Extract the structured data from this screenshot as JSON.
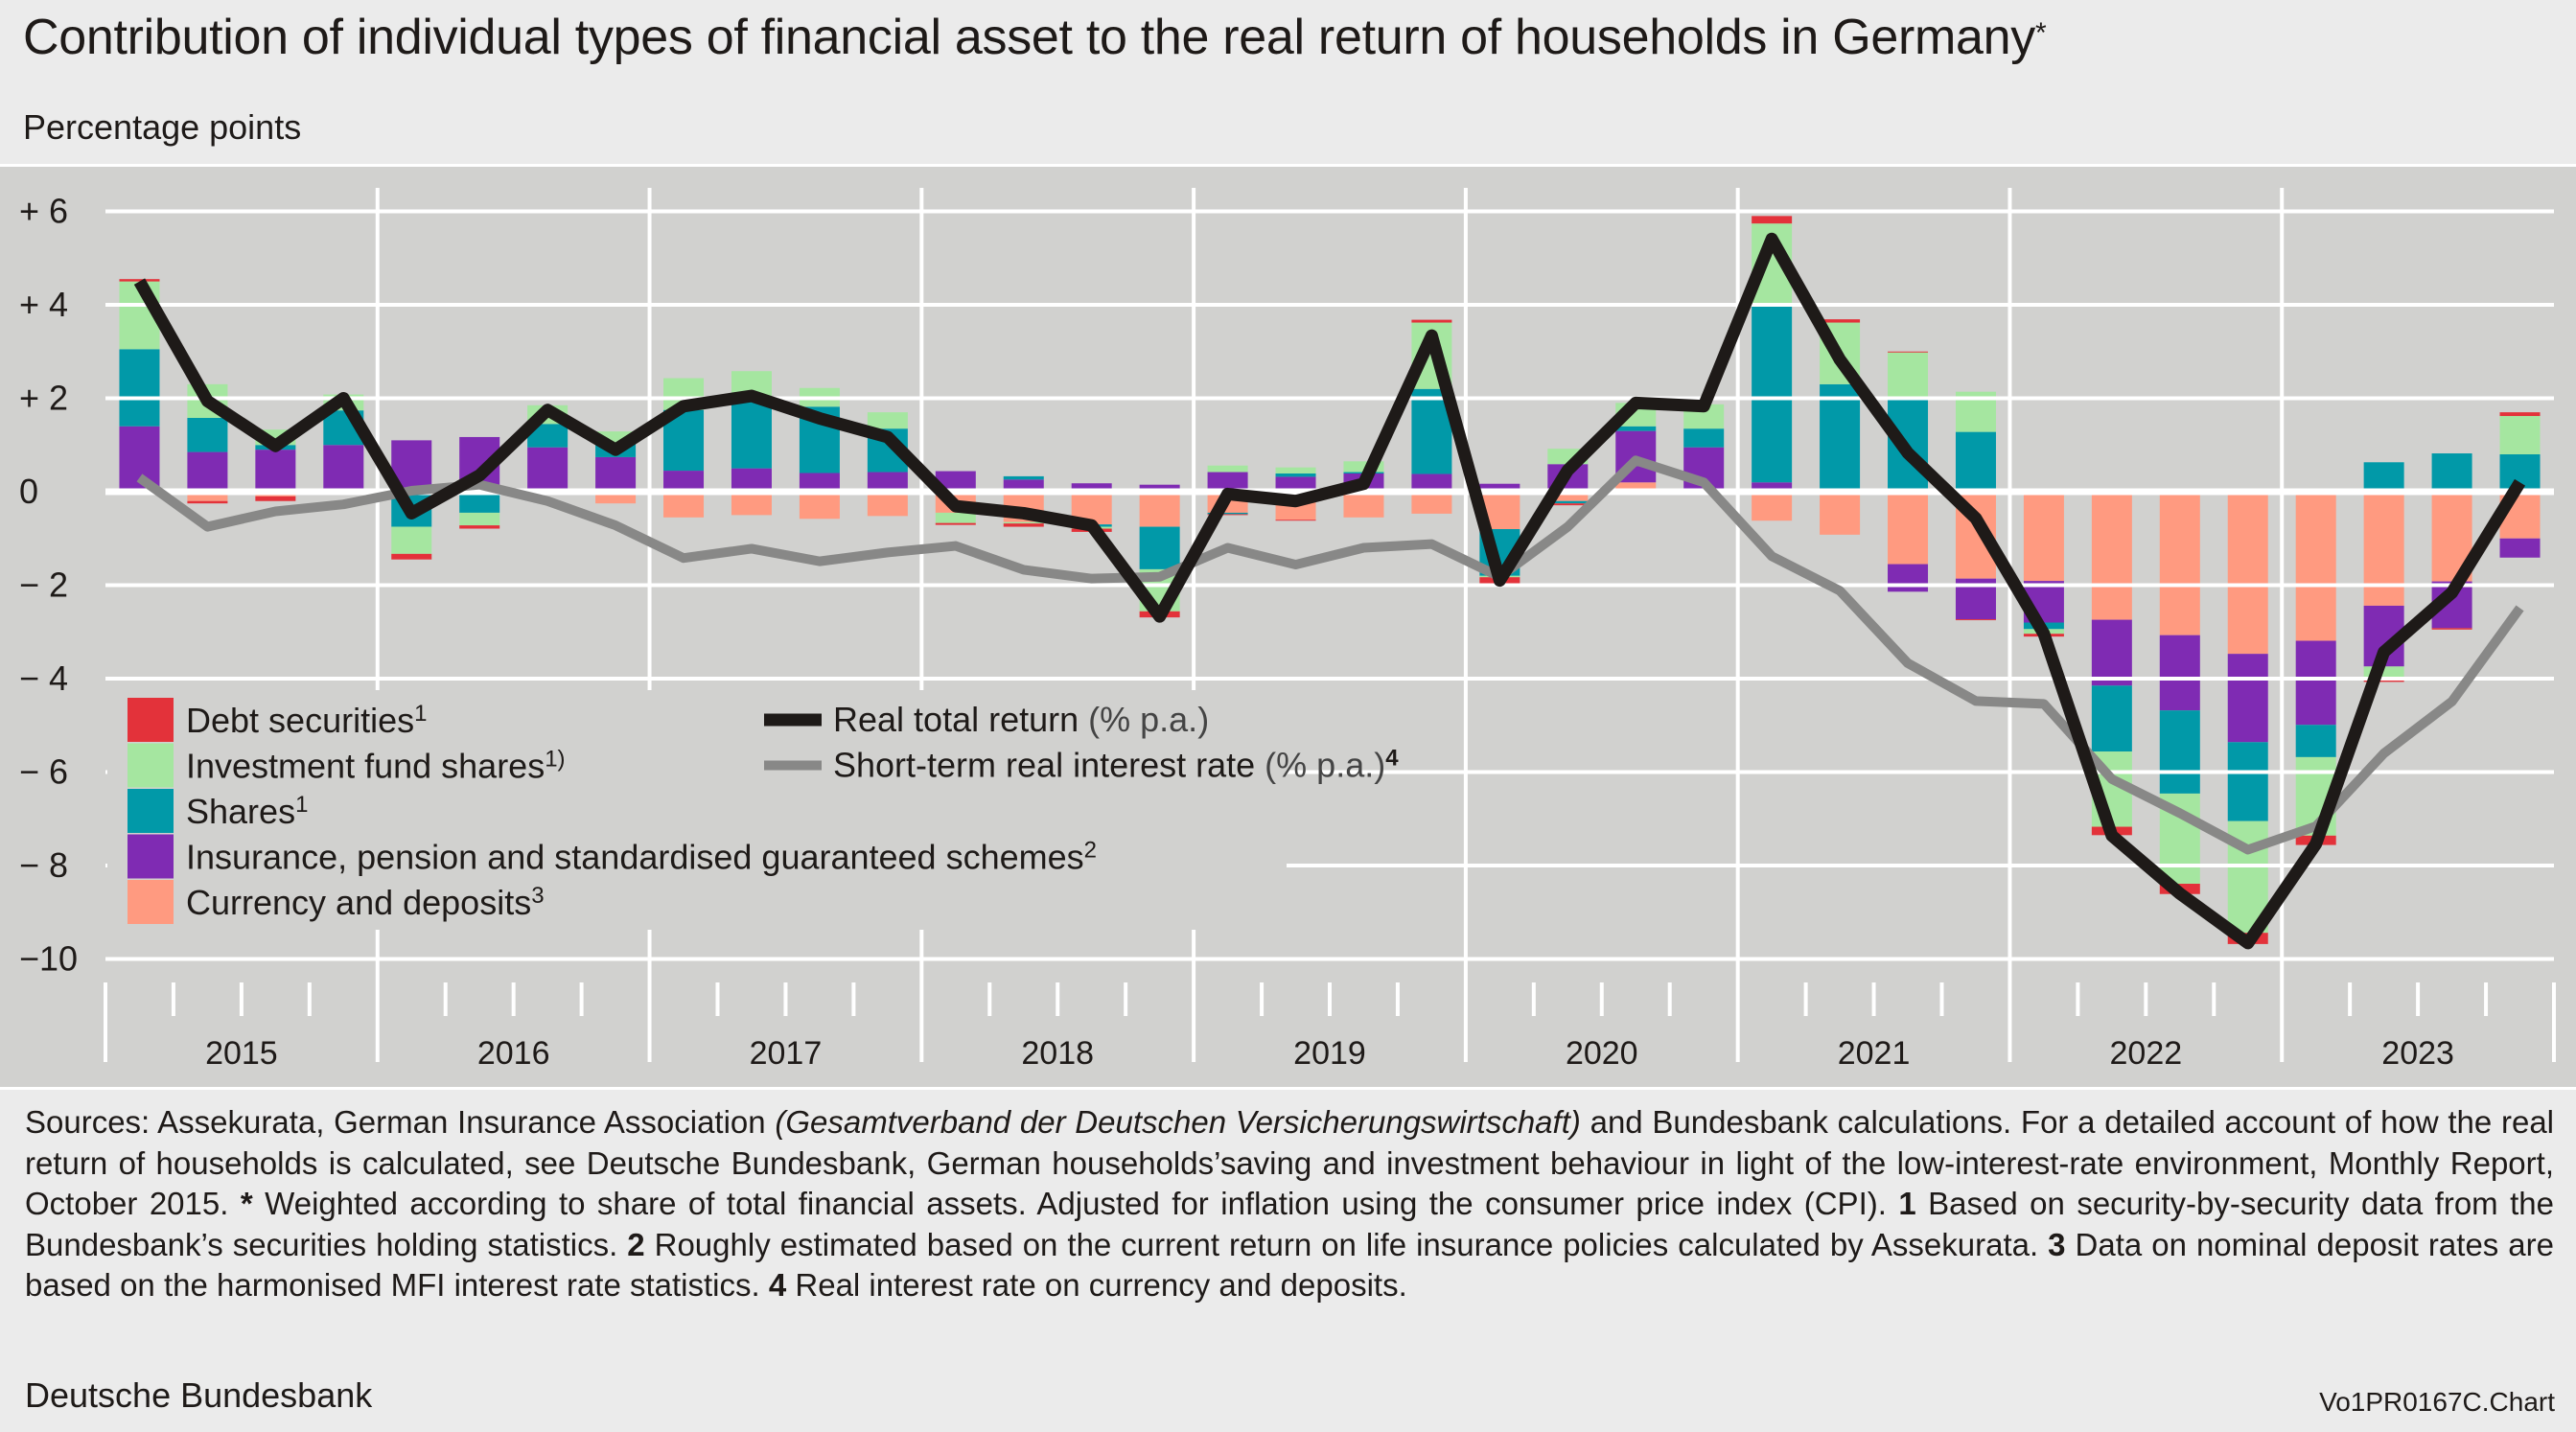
{
  "header": {
    "title": "Contribution of individual types of financial asset to the real return of households in Germany",
    "title_marker": "*",
    "subtitle": "Percentage points"
  },
  "colors": {
    "debt_securities": "#e3323a",
    "investment_fund_shares": "#a5e6a0",
    "shares": "#0199a8",
    "insurance": "#7f2bb3",
    "currency_deposits": "#ff9a80",
    "real_total_return": "#1e1a18",
    "short_term_rate": "#888887",
    "plot_background": "#d1d1cf",
    "grid": "#ffffff"
  },
  "chart_data": {
    "type": "bar",
    "stacked": true,
    "frequency": "quarterly",
    "categories": [
      "2015 Q1",
      "2015 Q2",
      "2015 Q3",
      "2015 Q4",
      "2016 Q1",
      "2016 Q2",
      "2016 Q3",
      "2016 Q4",
      "2017 Q1",
      "2017 Q2",
      "2017 Q3",
      "2017 Q4",
      "2018 Q1",
      "2018 Q2",
      "2018 Q3",
      "2018 Q4",
      "2019 Q1",
      "2019 Q2",
      "2019 Q3",
      "2019 Q4",
      "2020 Q1",
      "2020 Q2",
      "2020 Q3",
      "2020 Q4",
      "2021 Q1",
      "2021 Q2",
      "2021 Q3",
      "2021 Q4",
      "2022 Q1",
      "2022 Q2",
      "2022 Q3",
      "2022 Q4",
      "2023 Q1",
      "2023 Q2",
      "2023 Q3",
      "2023 Q4"
    ],
    "x_tick_labels": [
      "2015",
      "2016",
      "2017",
      "2018",
      "2019",
      "2020",
      "2021",
      "2022",
      "2023"
    ],
    "y_tick_labels": [
      "+ 6",
      "+ 4",
      "+ 2",
      "0",
      "− 2",
      "− 4",
      "− 6",
      "− 8",
      "−10"
    ],
    "y_ticks": [
      6,
      4,
      2,
      0,
      -2,
      -4,
      -6,
      -8,
      -10
    ],
    "ylim": [
      -10,
      6
    ],
    "ylabel": "Percentage points",
    "grid": "horizontal",
    "legend_placement": "bottom-left",
    "series": [
      {
        "key": "currency_deposits",
        "name": "Currency and deposits",
        "sup": "3",
        "type": "bar",
        "values": [
          -0.05,
          -0.2,
          -0.1,
          0,
          0,
          0,
          0,
          -0.25,
          -0.55,
          -0.5,
          -0.58,
          -0.52,
          -0.45,
          -0.65,
          -0.7,
          -0.75,
          -0.45,
          -0.6,
          -0.55,
          -0.47,
          -0.8,
          -0.2,
          0.2,
          0,
          -0.62,
          -0.92,
          -1.55,
          -1.86,
          -1.91,
          -2.74,
          -3.07,
          -3.47,
          -3.19,
          -2.44,
          -1.92,
          -1.0
        ]
      },
      {
        "key": "insurance",
        "name": "Insurance, pension and standardised guaranteed schemes",
        "sup": "2",
        "type": "bar",
        "values": [
          1.4,
          0.85,
          0.9,
          1.0,
          1.1,
          1.17,
          0.95,
          0.74,
          0.45,
          0.5,
          0.4,
          0.42,
          0.44,
          0.26,
          0.18,
          0.15,
          0.42,
          0.32,
          0.39,
          0.38,
          0.17,
          0.59,
          1.1,
          0.95,
          0.2,
          0,
          -0.59,
          -0.87,
          -0.89,
          -1.41,
          -1.61,
          -1.89,
          -1.8,
          -1.3,
          -1.0,
          -0.41
        ]
      },
      {
        "key": "shares",
        "name": "Shares",
        "sup": "1",
        "type": "bar",
        "values": [
          1.65,
          0.73,
          0.1,
          0.74,
          -0.75,
          -0.45,
          0.5,
          0.3,
          1.3,
          1.45,
          1.42,
          0.93,
          0,
          0.07,
          -0.05,
          -0.91,
          -0.03,
          0.07,
          0.03,
          1.82,
          -1.0,
          -0.05,
          0.1,
          0.4,
          3.79,
          2.3,
          2.04,
          1.28,
          -0.14,
          -1.41,
          -1.78,
          -1.69,
          -0.69,
          0.63,
          0.82,
          0.8
        ]
      },
      {
        "key": "investment_fund_shares",
        "name": "Investment fund shares",
        "sup": "1)",
        "type": "bar",
        "values": [
          1.45,
          0.72,
          0.33,
          0.34,
          -0.58,
          -0.27,
          0.4,
          0.25,
          0.68,
          0.63,
          0.4,
          0.35,
          -0.22,
          -0.03,
          -0.04,
          -0.9,
          0.14,
          0.13,
          0.23,
          1.42,
          -0.03,
          0.33,
          0.5,
          0.52,
          1.75,
          1.32,
          0.94,
          0.86,
          -0.1,
          -1.61,
          -1.93,
          -2.39,
          -1.68,
          -0.24,
          0,
          0.82
        ]
      },
      {
        "key": "debt_securities",
        "name": "Debt securities",
        "sup": "1",
        "type": "bar",
        "values": [
          0.05,
          -0.05,
          -0.1,
          -0.02,
          -0.12,
          -0.07,
          -0.02,
          0,
          0,
          0,
          0,
          0,
          -0.04,
          -0.07,
          -0.07,
          -0.13,
          -0.02,
          -0.02,
          0,
          0.06,
          -0.15,
          -0.04,
          0,
          0,
          0.16,
          0.07,
          0.02,
          -0.02,
          -0.06,
          -0.18,
          -0.22,
          -0.24,
          -0.2,
          -0.09,
          -0.03,
          0.08
        ]
      },
      {
        "key": "real_total_return",
        "name": "Real total return",
        "unit": "(% p.a.)",
        "sup": "",
        "type": "line",
        "values": [
          4.5,
          1.94,
          0.98,
          2.0,
          -0.46,
          0.35,
          1.75,
          0.9,
          1.83,
          2.05,
          1.57,
          1.17,
          -0.31,
          -0.46,
          -0.72,
          -2.67,
          -0.05,
          -0.2,
          0.17,
          3.34,
          -1.9,
          0.46,
          1.9,
          1.83,
          5.41,
          2.83,
          0.83,
          -0.57,
          -3.04,
          -7.36,
          -8.6,
          -9.66,
          -7.54,
          -3.43,
          -2.16,
          0.2
        ]
      },
      {
        "key": "short_term_rate",
        "name": "Short-term real interest rate",
        "unit": "(% p.a.)",
        "sup": "4",
        "type": "line",
        "values": [
          0.3,
          -0.75,
          -0.42,
          -0.27,
          0.02,
          0.15,
          -0.2,
          -0.72,
          -1.42,
          -1.22,
          -1.49,
          -1.3,
          -1.16,
          -1.67,
          -1.86,
          -1.82,
          -1.2,
          -1.56,
          -1.2,
          -1.12,
          -1.82,
          -0.75,
          0.67,
          0.2,
          -1.38,
          -2.12,
          -3.67,
          -4.48,
          -4.54,
          -6.15,
          -6.88,
          -7.66,
          -7.16,
          -5.6,
          -4.49,
          -2.49
        ]
      }
    ]
  },
  "footer": {
    "s0": "Sources: Assekurata, German Insurance Association ",
    "s1_italic": "(Gesamtverband der Deutschen Versicherungswirtschaft)",
    "s2": " and Bundesbank calculations. For a detailed account of how the real return of households is calculated, see Deutsche Bundesbank, German households’saving and investment behaviour in light of the low-interest-rate environment, Monthly Report, October 2015. ",
    "m0": "*",
    "s3": " Weighted according to share of total financial assets. Adjusted for inflation using the con­sumer price index (CPI). ",
    "m1": "1",
    "s4": " Based on security-by-security data from the Bundesbank’s securities holding statistics. ",
    "m2": "2",
    "s5": " Roughly estimated based on the current return on life insurance policies calculated by Assekurata. ",
    "m3": "3",
    "s6": " Data on nominal deposit rates are based on the harmonised MFI interest rate statistics. ",
    "m4": "4",
    "s7": " Real interest rate on currency and deposits.",
    "organisation": "Deutsche Bundesbank",
    "chart_code": "Vo1PR0167C.Chart"
  }
}
